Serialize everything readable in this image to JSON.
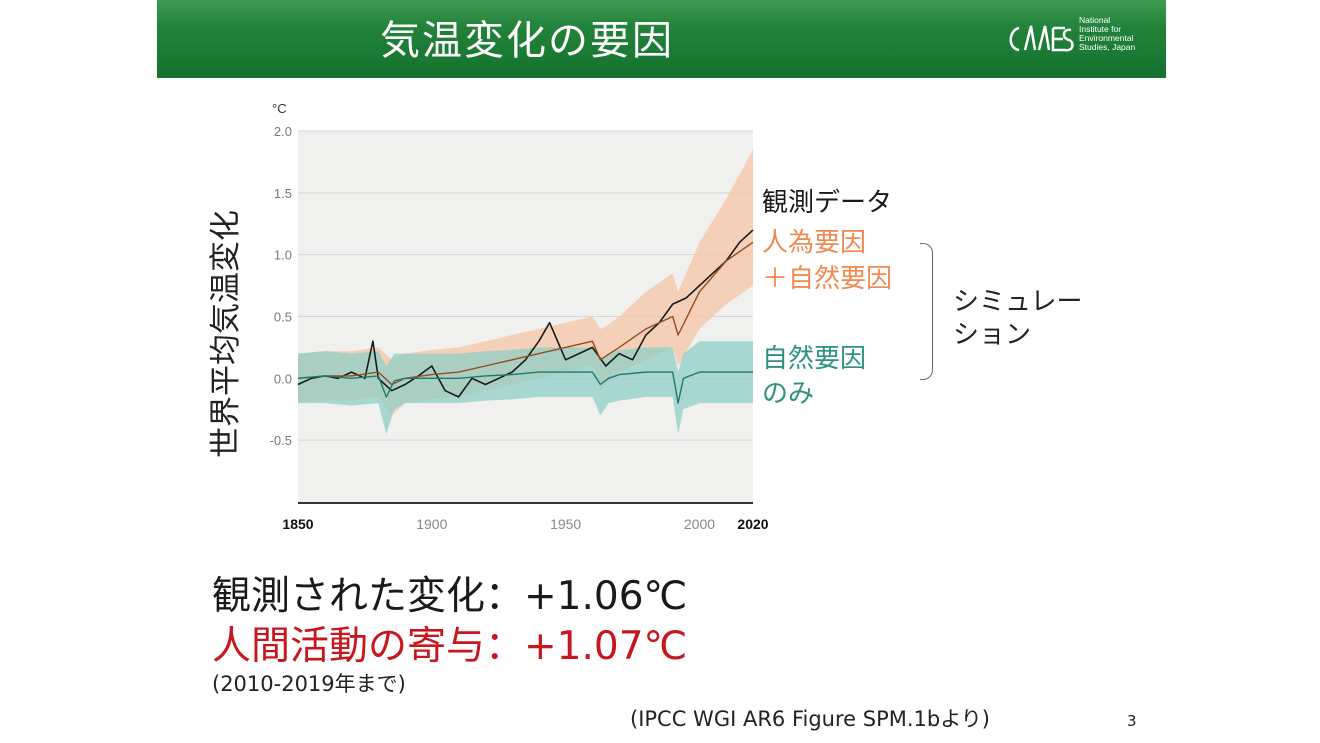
{
  "header": {
    "title": "気温変化の要因",
    "logo_lines": [
      "National",
      "Institute for",
      "Environmental",
      "Studies, Japan"
    ]
  },
  "chart_data": {
    "type": "line",
    "ylabel": "世界平均気温変化",
    "yunit": "°C",
    "xlim": [
      1850,
      2020
    ],
    "ylim": [
      -1.0,
      2.0
    ],
    "yticks": [
      2.0,
      1.5,
      1.0,
      0.5,
      0.0,
      -0.5
    ],
    "ytick_labels": [
      "2.0",
      "1.5",
      "1.0",
      "0.5",
      "0.0",
      "-0.5"
    ],
    "xticks": [
      1850,
      1900,
      1950,
      2000,
      2020
    ],
    "grid": true,
    "series": [
      {
        "name": "観測データ",
        "color": "#1a1a1a",
        "x": [
          1850,
          1855,
          1860,
          1865,
          1870,
          1875,
          1878,
          1880,
          1885,
          1890,
          1895,
          1900,
          1905,
          1910,
          1915,
          1920,
          1925,
          1930,
          1935,
          1940,
          1944,
          1950,
          1955,
          1960,
          1965,
          1970,
          1975,
          1980,
          1985,
          1990,
          1995,
          2000,
          2005,
          2010,
          2015,
          2020
        ],
        "y": [
          -0.05,
          0.0,
          0.02,
          0.0,
          0.05,
          0.0,
          0.3,
          0.0,
          -0.1,
          -0.05,
          0.02,
          0.1,
          -0.1,
          -0.15,
          0.0,
          -0.05,
          0.0,
          0.05,
          0.15,
          0.3,
          0.45,
          0.15,
          0.2,
          0.25,
          0.1,
          0.2,
          0.15,
          0.35,
          0.45,
          0.6,
          0.65,
          0.75,
          0.85,
          0.95,
          1.1,
          1.2
        ]
      },
      {
        "name": "人為要因\n＋自然要因",
        "color": "#f08a50",
        "band_color": "#f6c6a6",
        "x": [
          1850,
          1860,
          1870,
          1880,
          1885,
          1890,
          1900,
          1910,
          1920,
          1930,
          1940,
          1950,
          1960,
          1963,
          1965,
          1970,
          1980,
          1990,
          1992,
          2000,
          2010,
          2020
        ],
        "y": [
          0.0,
          0.02,
          0.02,
          0.05,
          -0.05,
          0.0,
          0.03,
          0.05,
          0.1,
          0.15,
          0.2,
          0.25,
          0.3,
          0.15,
          0.18,
          0.25,
          0.4,
          0.5,
          0.35,
          0.7,
          0.95,
          1.1
        ],
        "lower": [
          -0.2,
          -0.18,
          -0.18,
          -0.15,
          -0.3,
          -0.2,
          -0.17,
          -0.15,
          -0.1,
          -0.05,
          0.0,
          0.05,
          0.1,
          -0.1,
          -0.05,
          0.05,
          0.15,
          0.25,
          0.1,
          0.4,
          0.6,
          0.75
        ],
        "upper": [
          0.2,
          0.22,
          0.22,
          0.25,
          0.15,
          0.2,
          0.23,
          0.25,
          0.3,
          0.35,
          0.4,
          0.45,
          0.5,
          0.4,
          0.42,
          0.5,
          0.7,
          0.85,
          0.7,
          1.1,
          1.45,
          1.85
        ]
      },
      {
        "name": "自然要因\nのみ",
        "color": "#2e9080",
        "band_color": "#8fcfc6",
        "x": [
          1850,
          1860,
          1870,
          1880,
          1883,
          1886,
          1890,
          1900,
          1910,
          1920,
          1930,
          1940,
          1950,
          1960,
          1963,
          1966,
          1970,
          1980,
          1990,
          1992,
          1994,
          2000,
          2010,
          2020
        ],
        "y": [
          0.0,
          0.02,
          0.0,
          0.02,
          -0.15,
          -0.02,
          0.0,
          0.0,
          0.0,
          0.02,
          0.03,
          0.05,
          0.05,
          0.05,
          -0.05,
          0.0,
          0.03,
          0.05,
          0.05,
          -0.2,
          0.0,
          0.05,
          0.05,
          0.05
        ],
        "lower": [
          -0.2,
          -0.2,
          -0.22,
          -0.2,
          -0.45,
          -0.25,
          -0.2,
          -0.2,
          -0.2,
          -0.18,
          -0.17,
          -0.15,
          -0.15,
          -0.15,
          -0.3,
          -0.2,
          -0.18,
          -0.15,
          -0.15,
          -0.45,
          -0.25,
          -0.2,
          -0.2,
          -0.2
        ],
        "upper": [
          0.2,
          0.22,
          0.2,
          0.22,
          0.1,
          0.2,
          0.2,
          0.2,
          0.2,
          0.22,
          0.23,
          0.25,
          0.25,
          0.25,
          0.15,
          0.2,
          0.23,
          0.25,
          0.25,
          0.05,
          0.2,
          0.3,
          0.3,
          0.3
        ]
      }
    ]
  },
  "legend": {
    "observed": "観測データ",
    "human_natural_line1": "人為要因",
    "human_natural_line2": "＋自然要因",
    "natural_line1": "自然要因",
    "natural_line2": "のみ",
    "simulation_line1": "シミュレー",
    "simulation_line2": "ション"
  },
  "colors": {
    "observed": "#1a1a1a",
    "human_natural": "#f08a50",
    "natural": "#2e9080",
    "attribution_red": "#c8161d"
  },
  "summary": {
    "observed_change": "観測された変化：+1.06℃",
    "human_contribution": "人間活動の寄与：+1.07℃",
    "period_note": "(2010-2019年まで)",
    "source": "(IPCC WGI AR6 Figure SPM.1bより)"
  },
  "page_number": "3"
}
